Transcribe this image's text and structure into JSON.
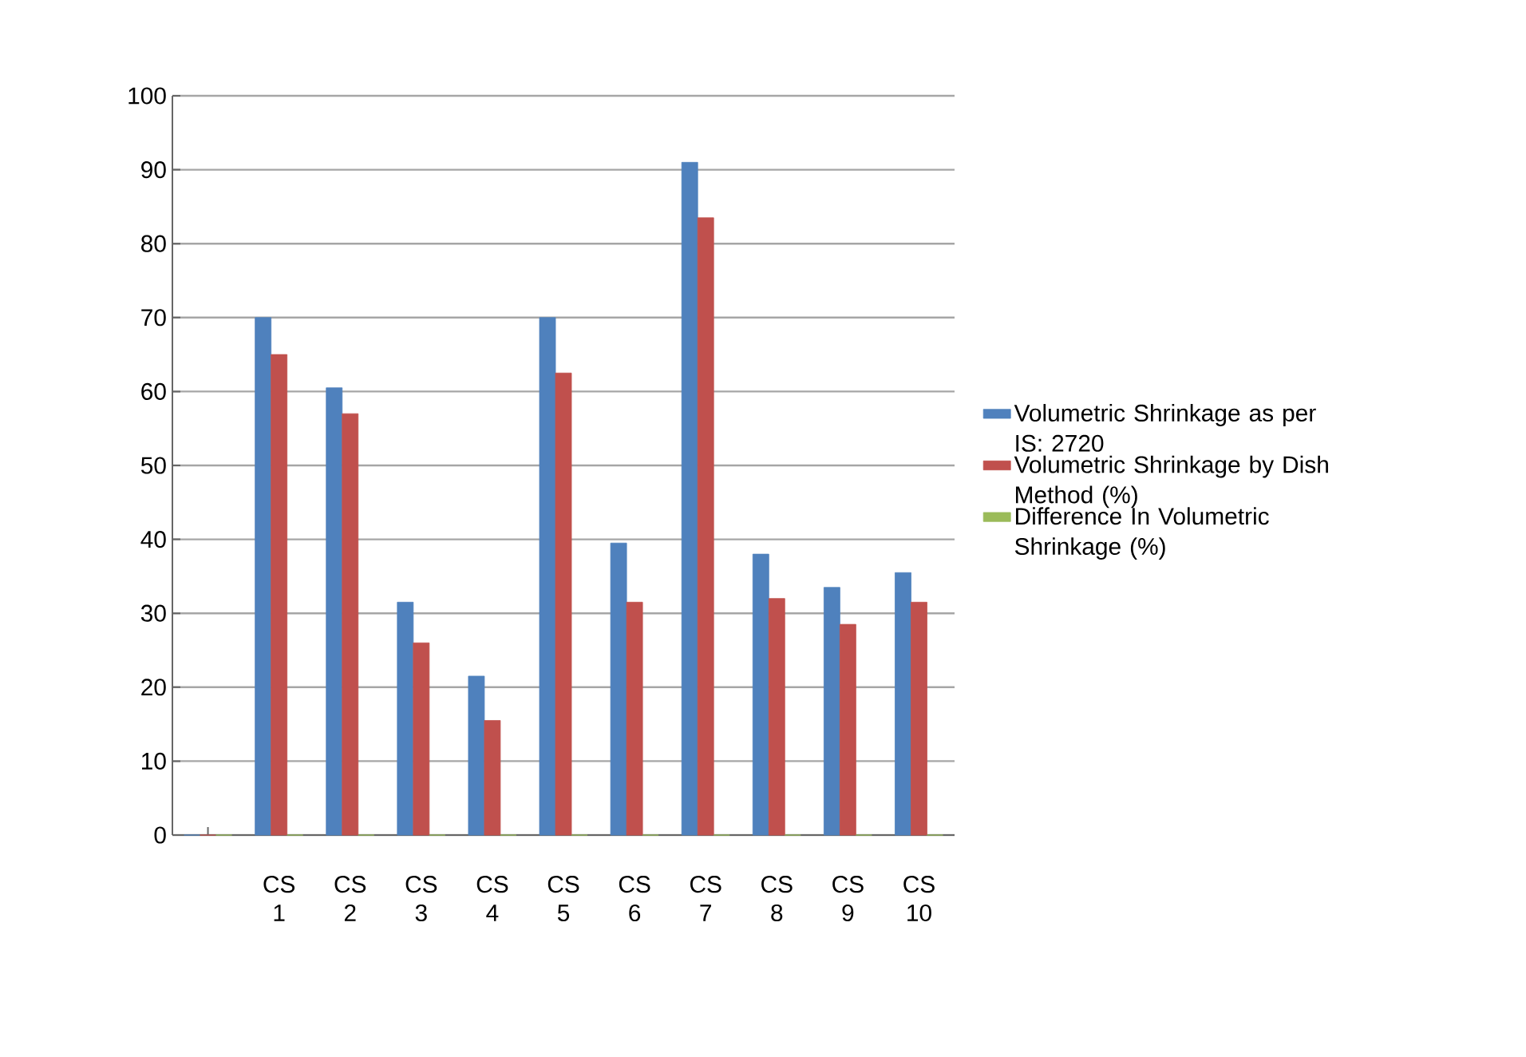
{
  "chart_data": {
    "type": "bar",
    "categories": [
      null,
      "CS 1",
      "CS 2",
      "CS 3",
      "CS 4",
      "CS 5",
      "CS 6",
      "CS 7",
      "CS 8",
      "CS 9",
      "CS 10"
    ],
    "series": [
      {
        "name": "Volumetric Shrinkage as per IS: 2720",
        "color": "#4f81bd",
        "values": [
          0,
          70,
          60.5,
          31.5,
          21.5,
          70,
          39.5,
          91,
          38,
          33.5,
          35.5
        ]
      },
      {
        "name": "Volumetric Shrinkage by Dish Method (%)",
        "color": "#c0504d",
        "values": [
          0,
          65,
          57,
          26,
          15.5,
          62.5,
          31.5,
          83.5,
          32,
          28.5,
          31.5
        ]
      },
      {
        "name": "Difference In Volumetric Shrinkage (%)",
        "color": "#9bbb59",
        "values": [
          0,
          0,
          0,
          0,
          0,
          0,
          0,
          0,
          0,
          0,
          0
        ]
      }
    ],
    "ylim": [
      0,
      100
    ],
    "yticks": [
      0,
      10,
      20,
      30,
      40,
      50,
      60,
      70,
      80,
      90,
      100
    ],
    "grid": "y",
    "legend": "right"
  }
}
